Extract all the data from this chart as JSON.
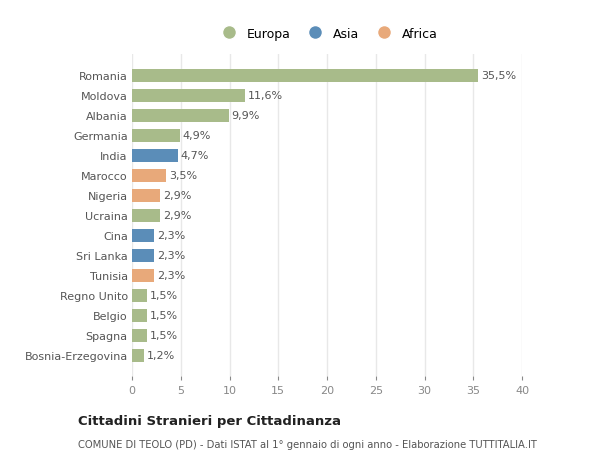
{
  "categories": [
    "Bosnia-Erzegovina",
    "Spagna",
    "Belgio",
    "Regno Unito",
    "Tunisia",
    "Sri Lanka",
    "Cina",
    "Ucraina",
    "Nigeria",
    "Marocco",
    "India",
    "Germania",
    "Albania",
    "Moldova",
    "Romania"
  ],
  "values": [
    1.2,
    1.5,
    1.5,
    1.5,
    2.3,
    2.3,
    2.3,
    2.9,
    2.9,
    3.5,
    4.7,
    4.9,
    9.9,
    11.6,
    35.5
  ],
  "labels": [
    "1,2%",
    "1,5%",
    "1,5%",
    "1,5%",
    "2,3%",
    "2,3%",
    "2,3%",
    "2,9%",
    "2,9%",
    "3,5%",
    "4,7%",
    "4,9%",
    "9,9%",
    "11,6%",
    "35,5%"
  ],
  "colors": [
    "#a8bb8a",
    "#a8bb8a",
    "#a8bb8a",
    "#a8bb8a",
    "#e8a97a",
    "#5b8db8",
    "#5b8db8",
    "#a8bb8a",
    "#e8a97a",
    "#e8a97a",
    "#5b8db8",
    "#a8bb8a",
    "#a8bb8a",
    "#a8bb8a",
    "#a8bb8a"
  ],
  "legend_labels": [
    "Europa",
    "Asia",
    "Africa"
  ],
  "legend_colors": [
    "#a8bb8a",
    "#5b8db8",
    "#e8a97a"
  ],
  "xlim": [
    0,
    40
  ],
  "xticks": [
    0,
    5,
    10,
    15,
    20,
    25,
    30,
    35,
    40
  ],
  "title": "Cittadini Stranieri per Cittadinanza",
  "subtitle": "COMUNE DI TEOLO (PD) - Dati ISTAT al 1° gennaio di ogni anno - Elaborazione TUTTITALIA.IT",
  "bg_color": "#ffffff",
  "bar_height": 0.65,
  "grid_color": "#e8e8e8",
  "label_fontsize": 8,
  "tick_fontsize": 8,
  "ylabel_fontsize": 8
}
